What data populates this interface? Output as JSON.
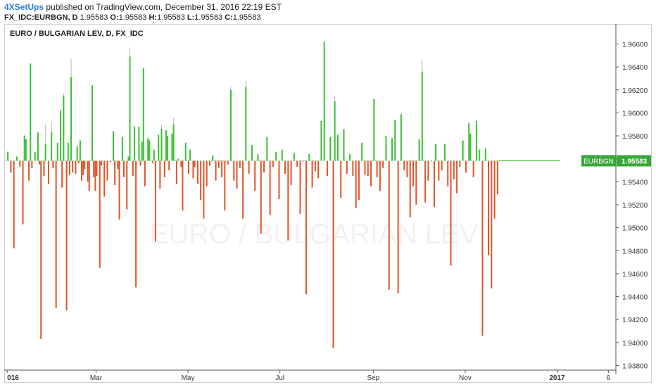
{
  "header": {
    "publisher": "4XSetUps",
    "published_text": " published on TradingView.com, December 31, 2016 22:19 EST",
    "symbol_line": {
      "symbol": "FX_IDC:EURBGN, D",
      "open_label": "O:",
      "open": "1.95583",
      "high_label": "H:",
      "high": "1.95583",
      "low_label": "L:",
      "low": "1.95583",
      "close_label": "C:",
      "close": "1.95583",
      "first_value": "1.95583"
    }
  },
  "colors": {
    "up": "#3cbf34",
    "down": "#e0542a",
    "wick": "#b8b8b8",
    "price_tag": "#3aa63a",
    "watermark": "#f1f1f1",
    "axis": "#555555"
  },
  "chart_data": {
    "type": "candlestick",
    "title": "EURO / BULGARIAN LEV, D, FX_IDC",
    "watermark": "EURO / BULGARIAN LEV",
    "baseline": 1.95583,
    "price_label": {
      "symbol": "EURBGN",
      "value": "1.95583"
    },
    "y_ticks": [
      "1.96600",
      "1.96400",
      "1.96200",
      "1.96000",
      "1.95800",
      "1.95600",
      "1.95400",
      "1.95200",
      "1.95000",
      "1.94800",
      "1.94600",
      "1.94400",
      "1.94200",
      "1.94000",
      "1.93800"
    ],
    "y_tick_values": [
      1.966,
      1.964,
      1.962,
      1.96,
      1.958,
      1.956,
      1.954,
      1.952,
      1.95,
      1.948,
      1.946,
      1.944,
      1.942,
      1.94,
      1.938
    ],
    "ylim": [
      1.9376,
      1.9675
    ],
    "x_ticks": [
      "016",
      "Mar",
      "May",
      "Jul",
      "Sep",
      "Nov",
      "2017",
      "6"
    ],
    "x_tick_days": [
      1,
      60,
      121,
      182,
      244,
      305,
      366,
      400
    ],
    "xlim": [
      0,
      405
    ],
    "grid": false,
    "bars": [
      {
        "d": 1,
        "v": 1.9566,
        "w": 1.9567
      },
      {
        "d": 3,
        "v": 1.9548
      },
      {
        "d": 5,
        "v": 1.9482
      },
      {
        "d": 7,
        "v": 1.9562
      },
      {
        "d": 9,
        "v": 1.9553
      },
      {
        "d": 11,
        "v": 1.9503
      },
      {
        "d": 12,
        "v": 1.958,
        "w": 1.9581
      },
      {
        "d": 13,
        "v": 1.9577
      },
      {
        "d": 15,
        "v": 1.9541
      },
      {
        "d": 16,
        "v": 1.9643
      },
      {
        "d": 17,
        "v": 1.9552
      },
      {
        "d": 19,
        "v": 1.9566
      },
      {
        "d": 21,
        "v": 1.9583
      },
      {
        "d": 22,
        "v": 1.9555
      },
      {
        "d": 23,
        "v": 1.9403
      },
      {
        "d": 25,
        "v": 1.9545
      },
      {
        "d": 26,
        "v": 1.9573,
        "w": 1.959
      },
      {
        "d": 28,
        "v": 1.9538
      },
      {
        "d": 30,
        "v": 1.9583,
        "w": 1.9592
      },
      {
        "d": 31,
        "v": 1.9552
      },
      {
        "d": 33,
        "v": 1.943
      },
      {
        "d": 34,
        "v": 1.9574
      },
      {
        "d": 36,
        "v": 1.9602
      },
      {
        "d": 37,
        "v": 1.9535
      },
      {
        "d": 38,
        "v": 1.9615,
        "w": 1.9617
      },
      {
        "d": 40,
        "v": 1.9428
      },
      {
        "d": 41,
        "v": 1.9574
      },
      {
        "d": 42,
        "v": 1.9546
      },
      {
        "d": 43,
        "v": 1.9631,
        "w": 1.9647
      },
      {
        "d": 44,
        "v": 1.9548
      },
      {
        "d": 46,
        "v": 1.9547
      },
      {
        "d": 47,
        "v": 1.9571
      },
      {
        "d": 48,
        "v": 1.9556
      },
      {
        "d": 49,
        "v": 1.9576
      },
      {
        "d": 50,
        "v": 1.9541
      },
      {
        "d": 51,
        "v": 1.9546
      },
      {
        "d": 52,
        "v": 1.9551
      },
      {
        "d": 54,
        "v": 1.954
      },
      {
        "d": 55,
        "v": 1.9532
      },
      {
        "d": 57,
        "v": 1.9624
      },
      {
        "d": 58,
        "v": 1.9544
      },
      {
        "d": 59,
        "v": 1.9532
      },
      {
        "d": 60,
        "v": 1.9545
      },
      {
        "d": 62,
        "v": 1.9465
      },
      {
        "d": 63,
        "v": 1.9554
      },
      {
        "d": 65,
        "v": 1.9527
      },
      {
        "d": 67,
        "v": 1.9541
      },
      {
        "d": 69,
        "v": 1.9557
      },
      {
        "d": 71,
        "v": 1.9584
      },
      {
        "d": 72,
        "v": 1.9537
      },
      {
        "d": 74,
        "v": 1.9551
      },
      {
        "d": 75,
        "v": 1.9507
      },
      {
        "d": 77,
        "v": 1.9579
      },
      {
        "d": 78,
        "v": 1.9544
      },
      {
        "d": 80,
        "v": 1.9516
      },
      {
        "d": 81,
        "v": 1.9562
      },
      {
        "d": 82,
        "v": 1.9649,
        "w": 1.9657
      },
      {
        "d": 84,
        "v": 1.9545
      },
      {
        "d": 85,
        "v": 1.9588
      },
      {
        "d": 86,
        "v": 1.9448
      },
      {
        "d": 88,
        "v": 1.9588
      },
      {
        "d": 89,
        "v": 1.9554
      },
      {
        "d": 90,
        "v": 1.9575
      },
      {
        "d": 91,
        "v": 1.9639
      },
      {
        "d": 92,
        "v": 1.9536
      },
      {
        "d": 94,
        "v": 1.9578
      },
      {
        "d": 95,
        "v": 1.9576
      },
      {
        "d": 97,
        "v": 1.9556
      },
      {
        "d": 98,
        "v": 1.9568
      },
      {
        "d": 99,
        "v": 1.9488
      },
      {
        "d": 101,
        "v": 1.9581
      },
      {
        "d": 102,
        "v": 1.9534
      },
      {
        "d": 103,
        "v": 1.9586,
        "w": 1.9589
      },
      {
        "d": 105,
        "v": 1.9544
      },
      {
        "d": 106,
        "v": 1.9585
      },
      {
        "d": 107,
        "v": 1.958
      },
      {
        "d": 108,
        "v": 1.955
      },
      {
        "d": 110,
        "v": 1.9582
      },
      {
        "d": 111,
        "v": 1.959,
        "w": 1.9596
      },
      {
        "d": 113,
        "v": 1.9538
      },
      {
        "d": 114,
        "v": 1.956
      },
      {
        "d": 116,
        "v": 1.9553
      },
      {
        "d": 117,
        "v": 1.9515
      },
      {
        "d": 119,
        "v": 1.9574
      },
      {
        "d": 121,
        "v": 1.9547
      },
      {
        "d": 122,
        "v": 1.9568
      },
      {
        "d": 124,
        "v": 1.9543
      },
      {
        "d": 125,
        "v": 1.9553
      },
      {
        "d": 127,
        "v": 1.9538
      },
      {
        "d": 129,
        "v": 1.9524
      },
      {
        "d": 131,
        "v": 1.9508
      },
      {
        "d": 133,
        "v": 1.9536
      },
      {
        "d": 135,
        "v": 1.9554
      },
      {
        "d": 137,
        "v": 1.9563
      },
      {
        "d": 139,
        "v": 1.9541
      },
      {
        "d": 141,
        "v": 1.9552
      },
      {
        "d": 143,
        "v": 1.9544
      },
      {
        "d": 145,
        "v": 1.9515
      },
      {
        "d": 147,
        "v": 1.9555
      },
      {
        "d": 149,
        "v": 1.962,
        "w": 1.9623
      },
      {
        "d": 151,
        "v": 1.9541
      },
      {
        "d": 153,
        "v": 1.9534
      },
      {
        "d": 155,
        "v": 1.9552
      },
      {
        "d": 157,
        "v": 1.9508
      },
      {
        "d": 159,
        "v": 1.9623,
        "w": 1.9628
      },
      {
        "d": 161,
        "v": 1.9547
      },
      {
        "d": 163,
        "v": 1.9572
      },
      {
        "d": 165,
        "v": 1.9532
      },
      {
        "d": 167,
        "v": 1.9564
      },
      {
        "d": 169,
        "v": 1.9495
      },
      {
        "d": 171,
        "v": 1.9548
      },
      {
        "d": 173,
        "v": 1.9579
      },
      {
        "d": 175,
        "v": 1.9511
      },
      {
        "d": 177,
        "v": 1.9553
      },
      {
        "d": 179,
        "v": 1.9566
      },
      {
        "d": 181,
        "v": 1.9525
      },
      {
        "d": 183,
        "v": 1.9568
      },
      {
        "d": 185,
        "v": 1.9547
      },
      {
        "d": 187,
        "v": 1.9489
      },
      {
        "d": 189,
        "v": 1.9537
      },
      {
        "d": 191,
        "v": 1.9565
      },
      {
        "d": 193,
        "v": 1.9553
      },
      {
        "d": 195,
        "v": 1.9512
      },
      {
        "d": 197,
        "v": 1.9558
      },
      {
        "d": 199,
        "v": 1.9442
      },
      {
        "d": 201,
        "v": 1.9564
      },
      {
        "d": 203,
        "v": 1.9535
      },
      {
        "d": 205,
        "v": 1.9549
      },
      {
        "d": 207,
        "v": 1.9543
      },
      {
        "d": 209,
        "v": 1.9593
      },
      {
        "d": 211,
        "v": 1.9662
      },
      {
        "d": 213,
        "v": 1.9545
      },
      {
        "d": 215,
        "v": 1.9579
      },
      {
        "d": 217,
        "v": 1.9395
      },
      {
        "d": 218,
        "v": 1.961,
        "w": 1.9615
      },
      {
        "d": 220,
        "v": 1.9581
      },
      {
        "d": 222,
        "v": 1.9526
      },
      {
        "d": 224,
        "v": 1.9586
      },
      {
        "d": 226,
        "v": 1.9547
      },
      {
        "d": 228,
        "v": 1.9564
      },
      {
        "d": 230,
        "v": 1.9545
      },
      {
        "d": 232,
        "v": 1.9517
      },
      {
        "d": 234,
        "v": 1.9524
      },
      {
        "d": 236,
        "v": 1.9574
      },
      {
        "d": 238,
        "v": 1.9546
      },
      {
        "d": 240,
        "v": 1.9545
      },
      {
        "d": 242,
        "v": 1.9536
      },
      {
        "d": 244,
        "v": 1.9612
      },
      {
        "d": 246,
        "v": 1.9544
      },
      {
        "d": 248,
        "v": 1.9532
      },
      {
        "d": 250,
        "v": 1.9552
      },
      {
        "d": 252,
        "v": 1.958
      },
      {
        "d": 254,
        "v": 1.9446
      },
      {
        "d": 256,
        "v": 1.9578
      },
      {
        "d": 258,
        "v": 1.9594
      },
      {
        "d": 260,
        "v": 1.9443
      },
      {
        "d": 262,
        "v": 1.9599
      },
      {
        "d": 264,
        "v": 1.955
      },
      {
        "d": 266,
        "v": 1.9544
      },
      {
        "d": 268,
        "v": 1.9509
      },
      {
        "d": 270,
        "v": 1.9536
      },
      {
        "d": 272,
        "v": 1.952
      },
      {
        "d": 274,
        "v": 1.9577
      },
      {
        "d": 276,
        "v": 1.9636,
        "w": 1.9646
      },
      {
        "d": 278,
        "v": 1.9522
      },
      {
        "d": 280,
        "v": 1.9541
      },
      {
        "d": 282,
        "v": 1.9558
      },
      {
        "d": 284,
        "v": 1.9518
      },
      {
        "d": 285,
        "v": 1.9573
      },
      {
        "d": 287,
        "v": 1.9541
      },
      {
        "d": 289,
        "v": 1.955
      },
      {
        "d": 291,
        "v": 1.9573
      },
      {
        "d": 293,
        "v": 1.9536
      },
      {
        "d": 295,
        "v": 1.9467
      },
      {
        "d": 297,
        "v": 1.9542
      },
      {
        "d": 299,
        "v": 1.953
      },
      {
        "d": 301,
        "v": 1.9553
      },
      {
        "d": 303,
        "v": 1.9576
      },
      {
        "d": 305,
        "v": 1.9548
      },
      {
        "d": 307,
        "v": 1.9591
      },
      {
        "d": 308,
        "v": 1.9582
      },
      {
        "d": 310,
        "v": 1.9544
      },
      {
        "d": 312,
        "v": 1.9593
      },
      {
        "d": 314,
        "v": 1.9568
      },
      {
        "d": 316,
        "v": 1.9406
      },
      {
        "d": 318,
        "v": 1.9569
      },
      {
        "d": 320,
        "v": 1.9476
      },
      {
        "d": 322,
        "v": 1.9447
      },
      {
        "d": 324,
        "v": 1.9508
      },
      {
        "d": 326,
        "v": 1.9529
      }
    ]
  }
}
